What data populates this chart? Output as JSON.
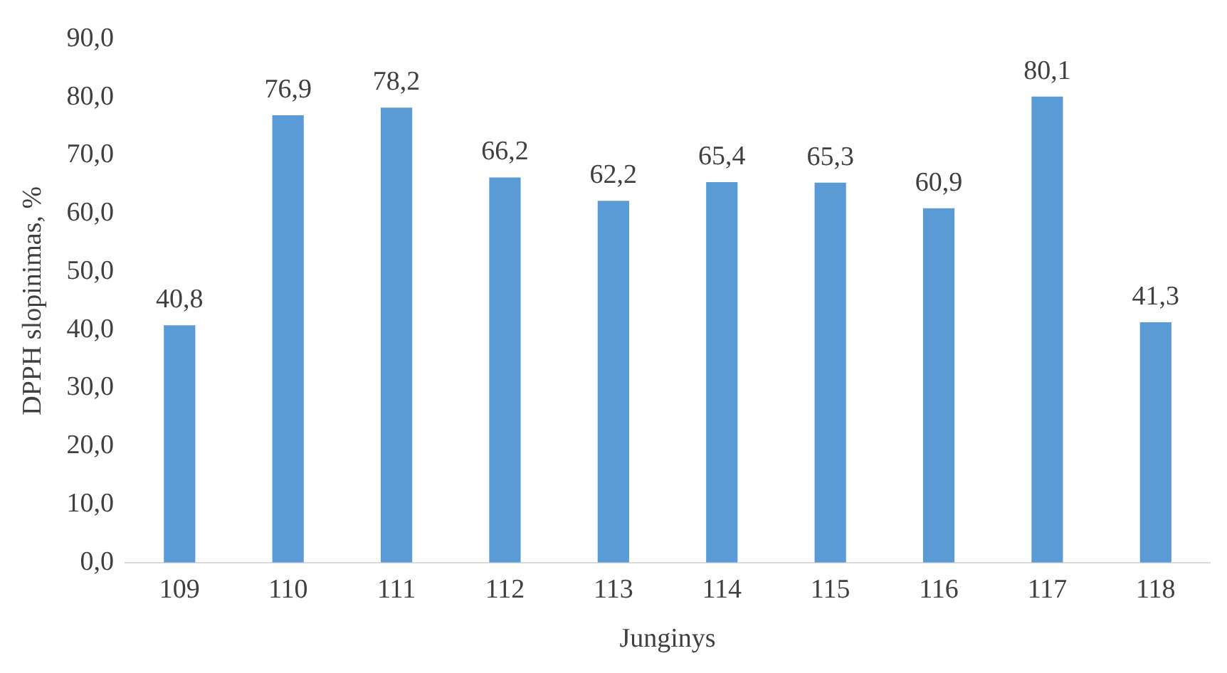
{
  "chart_data": {
    "type": "bar",
    "xlabel": "Junginys",
    "ylabel": "DPPH slopinimas, %",
    "categories": [
      "109",
      "110",
      "111",
      "112",
      "113",
      "114",
      "115",
      "116",
      "117",
      "118"
    ],
    "values": [
      40.8,
      76.9,
      78.2,
      66.2,
      62.2,
      65.4,
      65.3,
      60.9,
      80.1,
      41.3
    ],
    "value_labels": [
      "40,8",
      "76,9",
      "78,2",
      "66,2",
      "62,2",
      "65,4",
      "65,3",
      "60,9",
      "80,1",
      "41,3"
    ],
    "color": "#5b9bd5",
    "ylim": [
      0,
      90
    ],
    "yticks": [
      {
        "value": 0,
        "label": "0,0"
      },
      {
        "value": 10,
        "label": "10,0"
      },
      {
        "value": 20,
        "label": "20,0"
      },
      {
        "value": 30,
        "label": "30,0"
      },
      {
        "value": 40,
        "label": "40,0"
      },
      {
        "value": 50,
        "label": "50,0"
      },
      {
        "value": 60,
        "label": "60,0"
      },
      {
        "value": 70,
        "label": "70,0"
      },
      {
        "value": 80,
        "label": "80,0"
      },
      {
        "value": 90,
        "label": "90,0"
      }
    ],
    "grid": false,
    "legend": false
  }
}
